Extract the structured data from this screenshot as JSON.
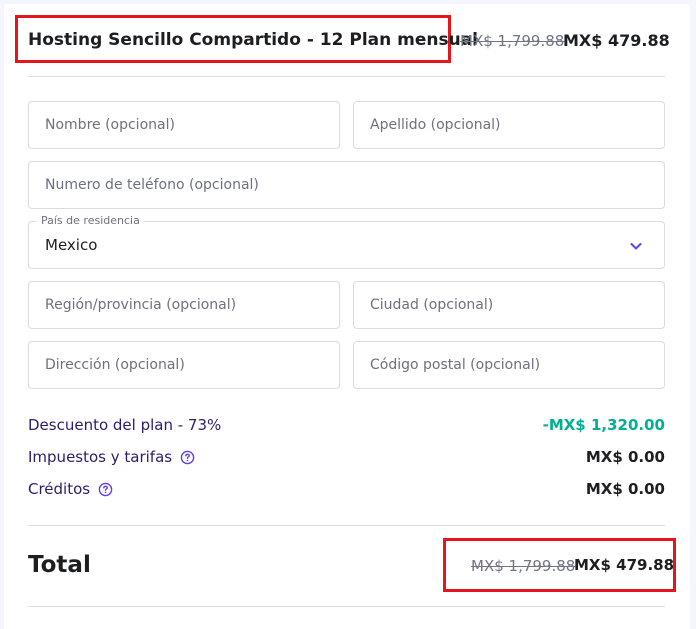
{
  "header": {
    "title": "Hosting Sencillo Compartido - 12 Plan mensual",
    "original_price": "MX$ 1,799.88",
    "price": "MX$ 479.88"
  },
  "form": {
    "first_name_placeholder": "Nombre (opcional)",
    "last_name_placeholder": "Apellido (opcional)",
    "phone_placeholder": "Numero de teléfono (opcional)",
    "country_label": "País de residencia",
    "country_value": "Mexico",
    "region_placeholder": "Región/provincia (opcional)",
    "city_placeholder": "Ciudad (opcional)",
    "address_placeholder": "Dirección (opcional)",
    "postal_placeholder": "Código postal (opcional)"
  },
  "summary": {
    "discount_label": "Descuento del plan - 73%",
    "discount_value": "-MX$ 1,320.00",
    "taxes_label": "Impuestos y tarifas",
    "taxes_value": "MX$ 0.00",
    "credits_label": "Créditos",
    "credits_value": "MX$ 0.00"
  },
  "total": {
    "label": "Total",
    "original_price": "MX$ 1,799.88",
    "price": "MX$ 479.88"
  },
  "colors": {
    "accent": "#673de6",
    "discount": "#00b090",
    "highlight_box": "#e5161b"
  },
  "icons": {
    "help": "question-circle-icon",
    "select": "chevron-down-icon"
  }
}
